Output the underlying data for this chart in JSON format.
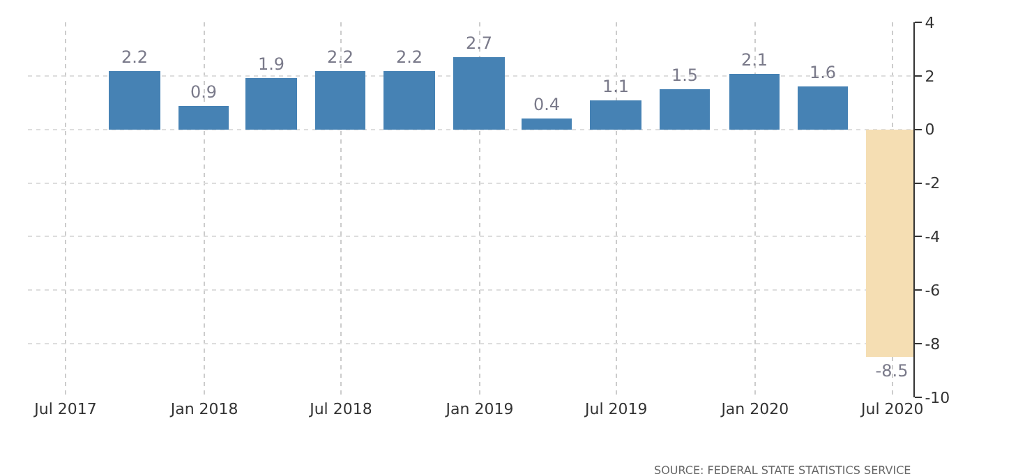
{
  "chart_data": {
    "type": "bar",
    "x": [
      "2017-09-30",
      "2017-12-31",
      "2018-03-31",
      "2018-06-30",
      "2018-09-30",
      "2018-12-31",
      "2019-03-31",
      "2019-06-30",
      "2019-09-30",
      "2019-12-31",
      "2020-03-31",
      "2020-06-30"
    ],
    "values": [
      2.2,
      0.9,
      1.9,
      2.2,
      2.2,
      2.7,
      0.4,
      1.1,
      1.5,
      2.1,
      1.6,
      -8.5
    ],
    "colors": [
      "#4682b4",
      "#4682b4",
      "#4682b4",
      "#4682b4",
      "#4682b4",
      "#4682b4",
      "#4682b4",
      "#4682b4",
      "#4682b4",
      "#4682b4",
      "#4682b4",
      "#f5deb3"
    ],
    "data_labels": true,
    "xlim": [
      "2017-05-12",
      "2020-07-29"
    ],
    "xticks": [
      {
        "value": "2017-07-01",
        "label": "Jul 2017"
      },
      {
        "value": "2018-01-01",
        "label": "Jan 2018"
      },
      {
        "value": "2018-07-01",
        "label": "Jul 2018"
      },
      {
        "value": "2019-01-01",
        "label": "Jan 2019"
      },
      {
        "value": "2019-07-01",
        "label": "Jul 2019"
      },
      {
        "value": "2020-01-01",
        "label": "Jan 2020"
      },
      {
        "value": "2020-07-01",
        "label": "Jul 2020"
      }
    ],
    "ylim": [
      -10,
      4
    ],
    "yticks": [
      -10,
      -8,
      -6,
      -4,
      -2,
      0,
      2,
      4
    ],
    "grid": true,
    "annotations": [
      "SOURCE: FEDERAL STATE STATISTICS SERVICE"
    ]
  }
}
